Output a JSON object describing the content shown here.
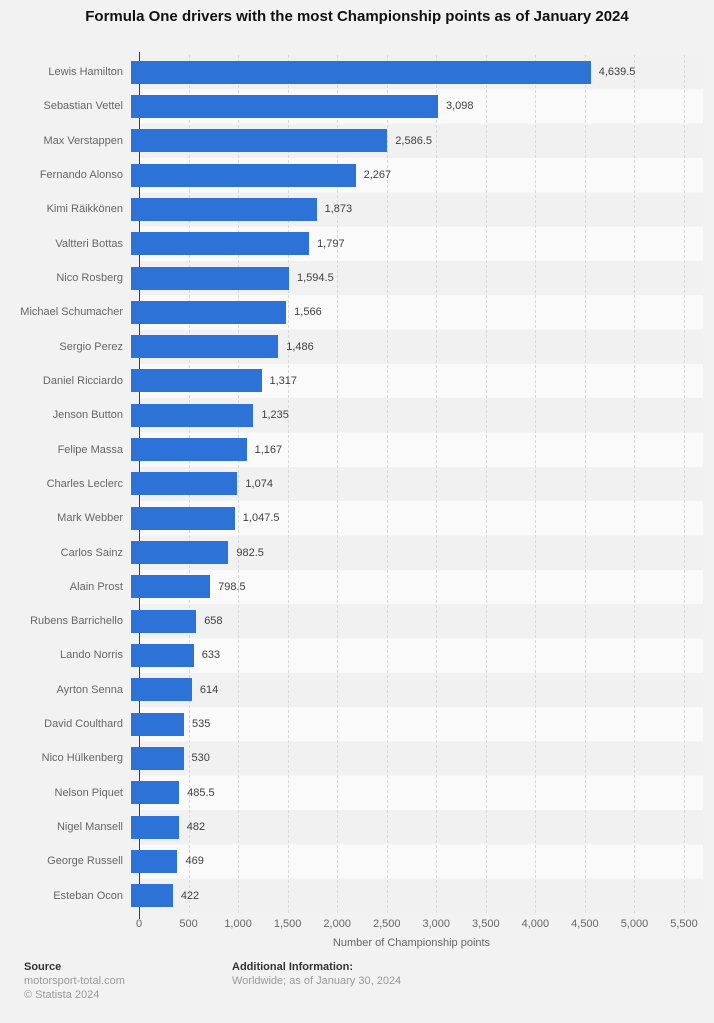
{
  "title": "Formula One drivers with the most Championship points as of January 2024",
  "chart_data": {
    "type": "bar",
    "orientation": "horizontal",
    "title": "Formula One drivers with the most Championship points as of January 2024",
    "categories": [
      "Lewis Hamilton",
      "Sebastian Vettel",
      "Max Verstappen",
      "Fernando Alonso",
      "Kimi Räikkönen",
      "Valtteri Bottas",
      "Nico Rosberg",
      "Michael Schumacher",
      "Sergio Perez",
      "Daniel Ricciardo",
      "Jenson Button",
      "Felipe Massa",
      "Charles Leclerc",
      "Mark Webber",
      "Carlos Sainz",
      "Alain Prost",
      "Rubens Barrichello",
      "Lando Norris",
      "Ayrton Senna",
      "David Coulthard",
      "Nico Hülkenberg",
      "Nelson Piquet",
      "Nigel Mansell",
      "George Russell",
      "Esteban Ocon"
    ],
    "values": [
      4639.5,
      3098,
      2586.5,
      2267,
      1873,
      1797,
      1594.5,
      1566,
      1486,
      1317,
      1235,
      1167,
      1074,
      1047.5,
      982.5,
      798.5,
      658,
      633,
      614,
      535,
      530,
      485.5,
      482,
      469,
      422
    ],
    "value_labels": [
      "4,639.5",
      "3,098",
      "2,586.5",
      "2,267",
      "1,873",
      "1,797",
      "1,594.5",
      "1,566",
      "1,486",
      "1,317",
      "1,235",
      "1,167",
      "1,074",
      "1,047.5",
      "982.5",
      "798.5",
      "658",
      "633",
      "614",
      "535",
      "530",
      "485.5",
      "482",
      "469",
      "422"
    ],
    "xlabel": "Number of Championship points",
    "ylabel": "",
    "xlim": [
      0,
      5500
    ],
    "xticks": [
      0,
      500,
      1000,
      1500,
      2000,
      2500,
      3000,
      3500,
      4000,
      4500,
      5000,
      5500
    ],
    "xtick_labels": [
      "0",
      "500",
      "1,000",
      "1,500",
      "2,000",
      "2,500",
      "3,000",
      "3,500",
      "4,000",
      "4,500",
      "5,000",
      "5,500"
    ],
    "grid": true,
    "legend": false,
    "colors": {
      "bar": "#2d73d7",
      "background": "#f2f2f2",
      "stripe_alt": "#fafafa",
      "gridline": "#d9d9d9",
      "axis_line": "#3d3d3d"
    }
  },
  "footer": {
    "source_heading": "Source",
    "source_line1": "motorsport-total.com",
    "source_line2": "© Statista 2024",
    "additional_heading": "Additional Information:",
    "additional_line1": "Worldwide; as of January 30, 2024"
  }
}
